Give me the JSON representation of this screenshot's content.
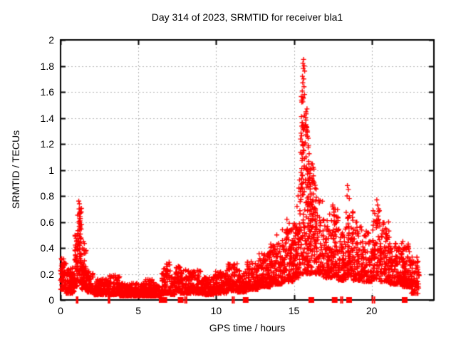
{
  "window": {
    "background": "#ffffff"
  },
  "chart_data": {
    "type": "scatter",
    "title": "Day 314 of 2023, SRMTID for receiver bla1",
    "xlabel": "GPS time / hours",
    "ylabel": "SRMTID / TECUs",
    "xlim": [
      0,
      24
    ],
    "ylim": [
      0,
      2
    ],
    "xticks": {
      "values": [
        0,
        5,
        10,
        15,
        20
      ],
      "labels": [
        "0",
        "5",
        "10",
        "15",
        "20"
      ]
    },
    "yticks": {
      "values": [
        0,
        0.2,
        0.4,
        0.6,
        0.8,
        1,
        1.2,
        1.4,
        1.6,
        1.8,
        2
      ],
      "labels": [
        "0",
        "0.2",
        "0.4",
        "0.6",
        "0.8",
        "1",
        "1.2",
        "1.4",
        "1.6",
        "1.8",
        "2"
      ]
    },
    "grid": {
      "style": "dashed",
      "color": "#b0b0b0"
    },
    "axis_color": "#000000",
    "legend": "none",
    "marker": {
      "shape": "plus",
      "color": "#ff0000",
      "size": 7
    },
    "series": [
      {
        "name": "SRMTID",
        "color": "#ff0000"
      }
    ],
    "rng_seed": 42,
    "envelope_bands": [
      [
        0.0,
        0.35,
        0.08,
        0.32,
        70,
        1.6
      ],
      [
        0.35,
        0.9,
        0.05,
        0.25,
        100,
        2
      ],
      [
        0.9,
        1.1,
        0.1,
        0.5,
        55,
        1.4
      ],
      [
        1.1,
        1.35,
        0.13,
        0.72,
        80,
        1.3
      ],
      [
        1.35,
        1.65,
        0.08,
        0.45,
        65,
        1.8
      ],
      [
        1.65,
        2.1,
        0.06,
        0.22,
        80,
        2
      ],
      [
        2.1,
        3.1,
        0.04,
        0.16,
        170,
        2
      ],
      [
        3.1,
        3.8,
        0.04,
        0.19,
        110,
        2
      ],
      [
        3.8,
        5.4,
        0.03,
        0.13,
        260,
        2
      ],
      [
        5.4,
        6.0,
        0.03,
        0.16,
        90,
        2
      ],
      [
        6.0,
        6.5,
        0.03,
        0.12,
        75,
        2
      ],
      [
        6.5,
        7.05,
        0.05,
        0.28,
        80,
        2.2
      ],
      [
        7.05,
        7.35,
        0.04,
        0.18,
        45,
        2
      ],
      [
        7.35,
        7.7,
        0.07,
        0.26,
        55,
        1.8
      ],
      [
        7.7,
        9.1,
        0.05,
        0.24,
        210,
        2
      ],
      [
        9.1,
        9.9,
        0.04,
        0.18,
        130,
        2
      ],
      [
        9.9,
        10.7,
        0.05,
        0.22,
        120,
        2
      ],
      [
        10.7,
        11.35,
        0.07,
        0.28,
        100,
        2
      ],
      [
        11.35,
        11.95,
        0.06,
        0.23,
        90,
        2
      ],
      [
        11.95,
        12.7,
        0.08,
        0.3,
        115,
        2
      ],
      [
        12.7,
        13.5,
        0.1,
        0.37,
        125,
        1.9
      ],
      [
        13.5,
        14.25,
        0.12,
        0.44,
        120,
        1.8
      ],
      [
        14.25,
        14.95,
        0.14,
        0.55,
        120,
        1.8
      ],
      [
        14.95,
        15.35,
        0.17,
        0.6,
        80,
        1.5
      ],
      [
        15.35,
        16.25,
        0.2,
        0.95,
        170,
        1.6
      ],
      [
        15.42,
        16.0,
        0.85,
        1.35,
        55,
        1.0
      ],
      [
        15.45,
        15.9,
        1.3,
        1.62,
        25,
        1.0
      ],
      [
        16.0,
        16.5,
        0.45,
        1.05,
        45,
        1.4
      ],
      [
        16.3,
        16.9,
        0.2,
        0.8,
        90,
        1.8
      ],
      [
        16.9,
        17.45,
        0.17,
        0.62,
        90,
        1.8
      ],
      [
        17.45,
        17.85,
        0.18,
        0.72,
        70,
        1.6
      ],
      [
        17.85,
        18.35,
        0.15,
        0.55,
        85,
        1.8
      ],
      [
        18.35,
        18.8,
        0.17,
        0.68,
        80,
        1.6
      ],
      [
        18.8,
        19.35,
        0.15,
        0.6,
        90,
        1.8
      ],
      [
        19.35,
        20.05,
        0.14,
        0.55,
        105,
        1.8
      ],
      [
        20.05,
        20.55,
        0.16,
        0.72,
        80,
        1.5
      ],
      [
        20.55,
        21.15,
        0.14,
        0.6,
        90,
        1.7
      ],
      [
        21.15,
        21.95,
        0.12,
        0.45,
        125,
        1.8
      ],
      [
        21.95,
        22.55,
        0.1,
        0.42,
        100,
        1.8
      ],
      [
        22.55,
        23.05,
        0.05,
        0.33,
        70,
        1.8
      ]
    ],
    "outlier_points": [
      [
        0.08,
        0.31
      ],
      [
        1.17,
        0.76
      ],
      [
        1.21,
        0.74
      ],
      [
        1.19,
        0.7
      ],
      [
        1.24,
        0.67
      ],
      [
        6.98,
        0.29
      ],
      [
        7.02,
        0.27
      ],
      [
        13.9,
        0.5
      ],
      [
        14.55,
        0.62
      ],
      [
        14.7,
        0.59
      ],
      [
        15.2,
        0.72
      ],
      [
        15.27,
        0.8
      ],
      [
        15.32,
        0.86
      ],
      [
        15.62,
        1.85
      ],
      [
        15.58,
        1.82
      ],
      [
        15.66,
        1.8
      ],
      [
        15.6,
        1.78
      ],
      [
        15.69,
        1.76
      ],
      [
        15.55,
        1.72
      ],
      [
        15.63,
        1.7
      ],
      [
        15.57,
        1.67
      ],
      [
        15.65,
        1.64
      ],
      [
        16.3,
        0.9
      ],
      [
        16.36,
        0.86
      ],
      [
        17.3,
        0.66
      ],
      [
        17.5,
        0.73
      ],
      [
        17.55,
        0.7
      ],
      [
        18.44,
        0.88
      ],
      [
        18.5,
        0.85
      ],
      [
        18.42,
        0.8
      ],
      [
        18.56,
        0.78
      ],
      [
        20.33,
        0.77
      ],
      [
        20.38,
        0.73
      ],
      [
        20.45,
        0.7
      ],
      [
        22.0,
        0.45
      ],
      [
        22.35,
        0.43
      ]
    ],
    "zero_axis_markers": {
      "squares": [
        6.5,
        6.67,
        7.72,
        11.9,
        16.12,
        17.62,
        18.55,
        22.12
      ],
      "dashes": [
        1.03,
        1.1,
        3.08,
        3.15,
        8.0,
        8.1,
        11.05,
        11.15,
        18.02,
        18.12,
        20.05,
        20.18
      ]
    }
  }
}
